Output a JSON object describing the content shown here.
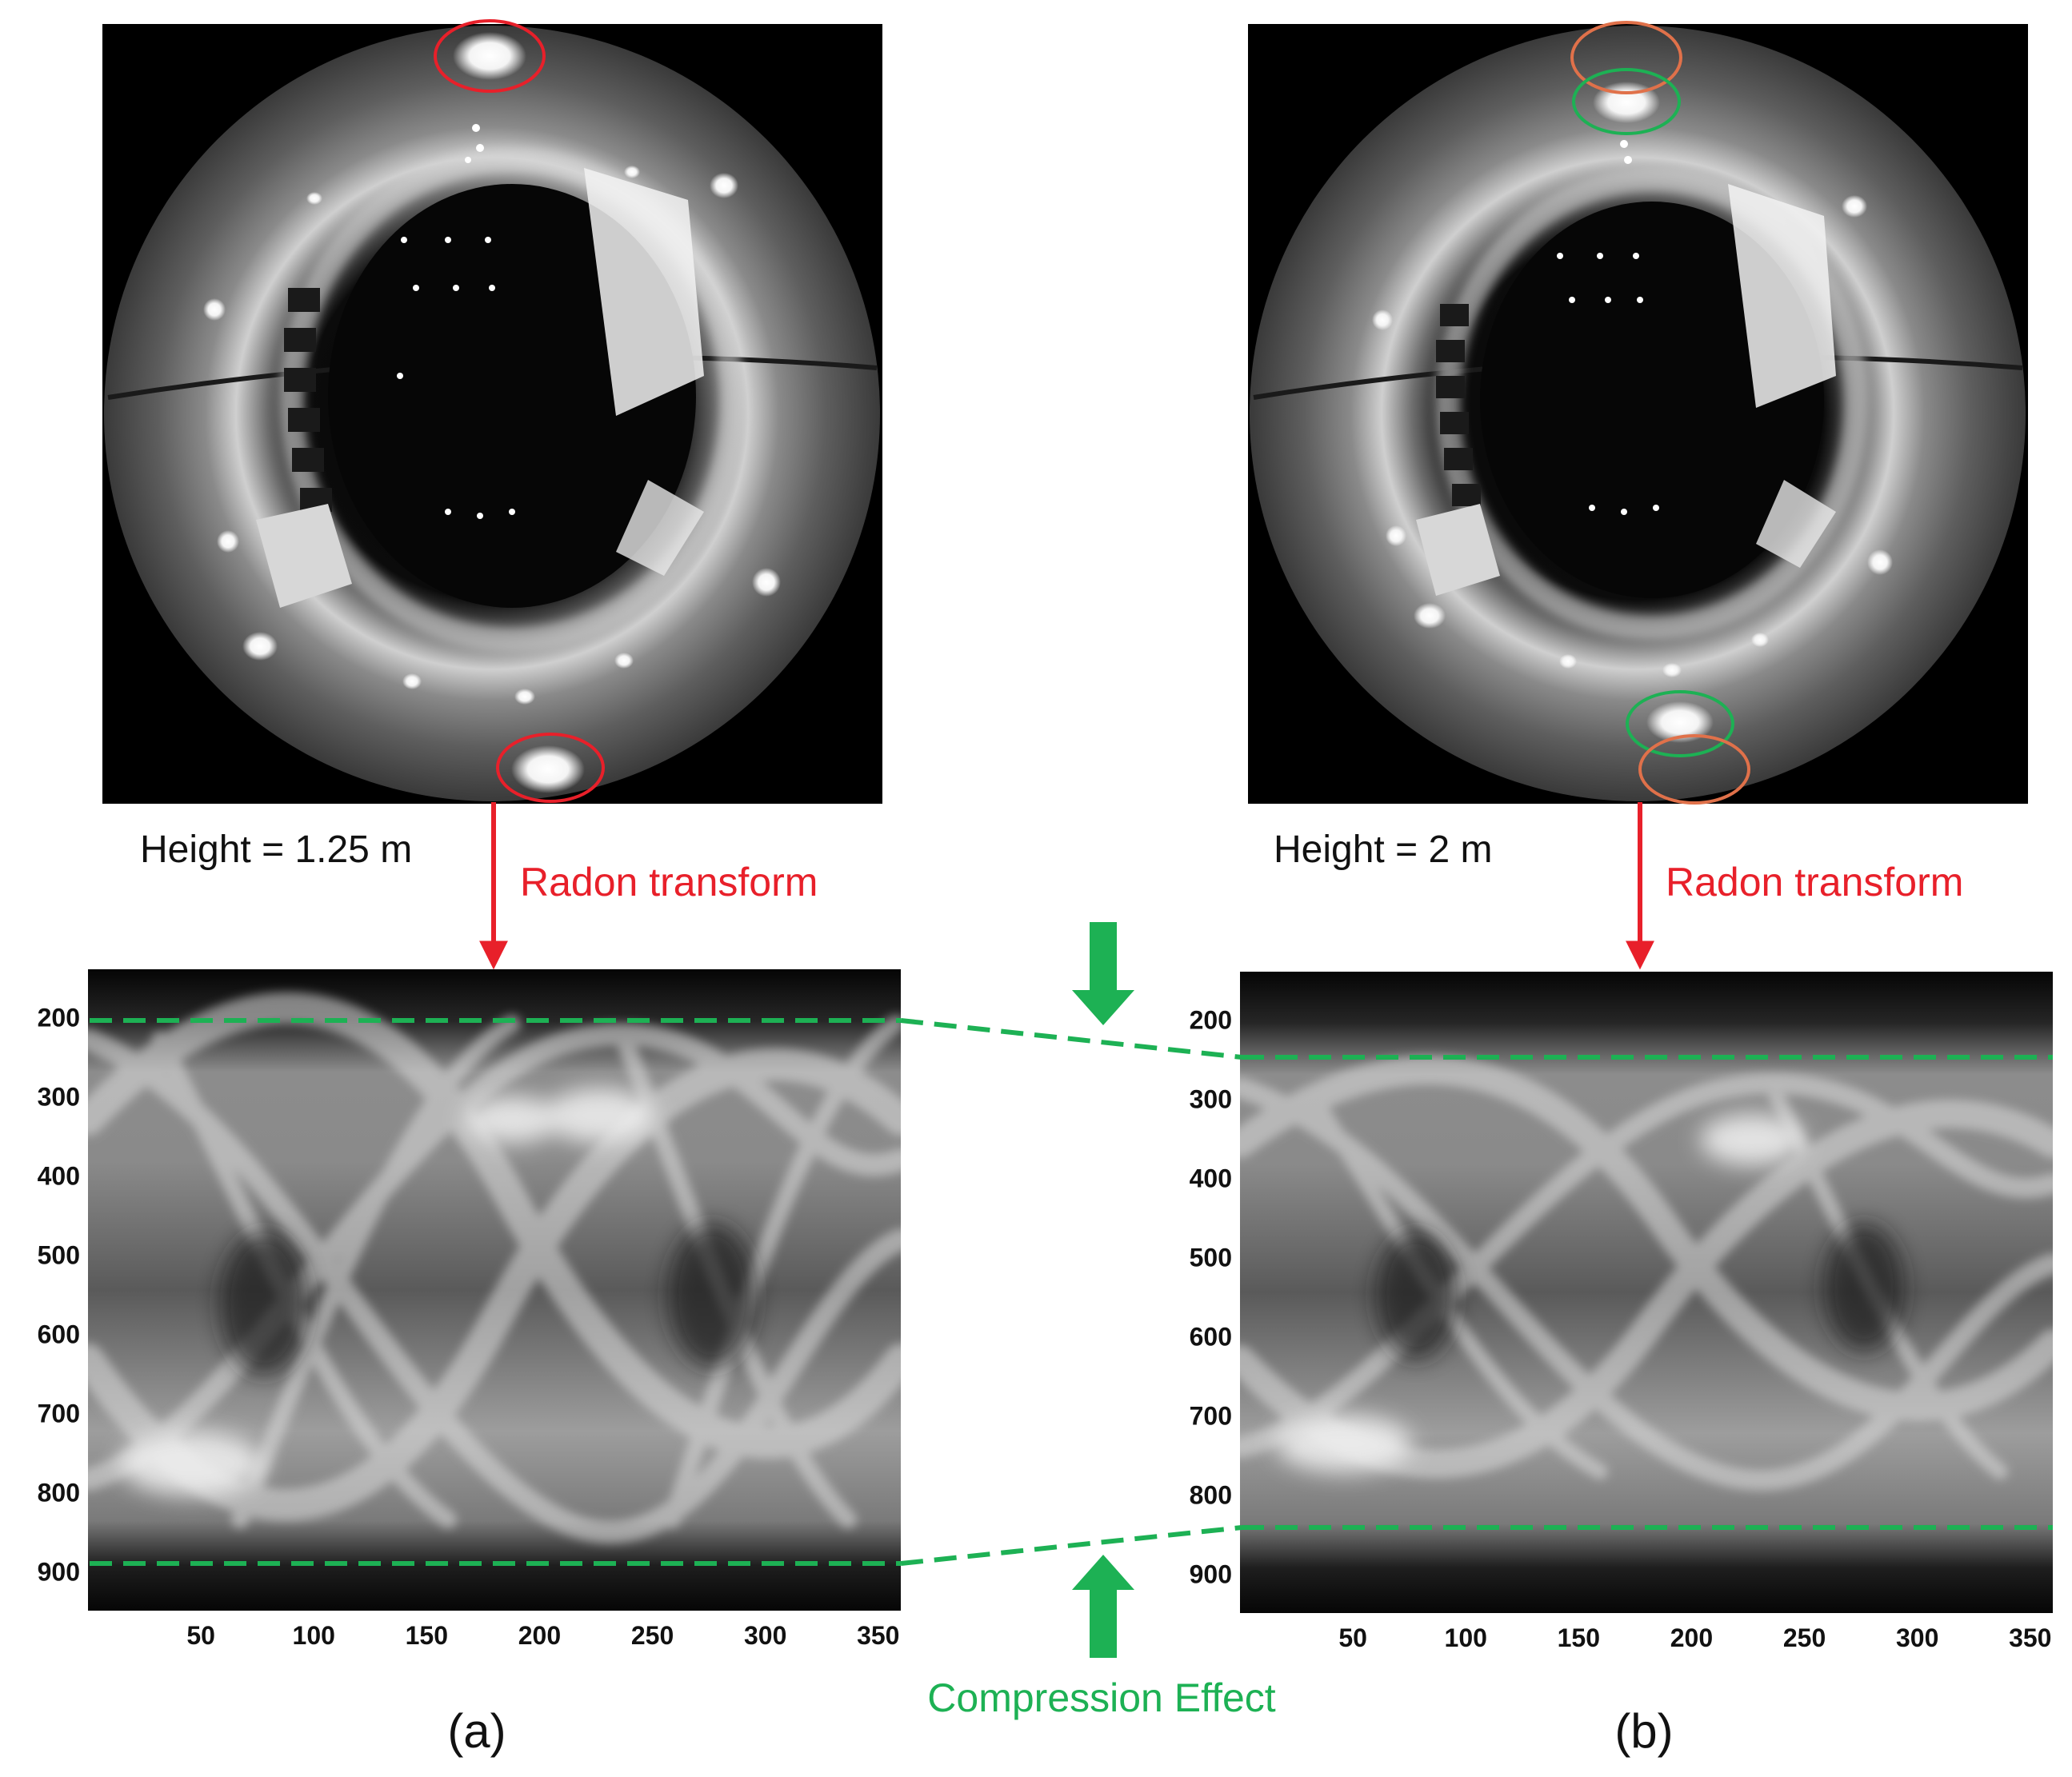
{
  "panels": [
    {
      "id": "a",
      "caption": "(a)",
      "height_label": "Height = 1.25 m",
      "transform_label": "Radon transform",
      "y_ticks": [
        "200",
        "300",
        "400",
        "500",
        "600",
        "700",
        "800",
        "900"
      ],
      "x_ticks": [
        "50",
        "100",
        "150",
        "200",
        "250",
        "300",
        "350"
      ]
    },
    {
      "id": "b",
      "caption": "(b)",
      "height_label": "Height = 2 m",
      "transform_label": "Radon transform",
      "y_ticks": [
        "200",
        "300",
        "400",
        "500",
        "600",
        "700",
        "800",
        "900"
      ],
      "x_ticks": [
        "50",
        "100",
        "150",
        "200",
        "250",
        "300",
        "350"
      ]
    }
  ],
  "compression_label": "Compression Effect",
  "colors": {
    "red": "#e8202a",
    "green": "#1db154",
    "orange": "#e0714a",
    "sinogram_dark": "#111111",
    "sinogram_light": "#e6e6e6"
  }
}
